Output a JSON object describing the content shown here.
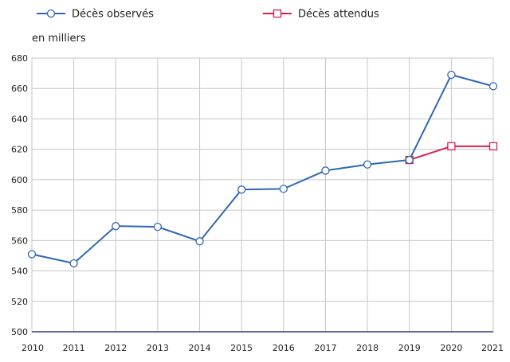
{
  "chart_data": {
    "type": "line",
    "title": "",
    "xlabel": "",
    "ylabel": "en milliers",
    "x": [
      2010,
      2011,
      2012,
      2013,
      2014,
      2015,
      2016,
      2017,
      2018,
      2019,
      2020,
      2021
    ],
    "xticks": [
      "2010",
      "2011",
      "2012",
      "2013",
      "2014",
      "2015",
      "2016",
      "2017",
      "2018",
      "2019",
      "2020",
      "2021"
    ],
    "ylim": [
      500,
      680
    ],
    "yticks": [
      "500",
      "520",
      "540",
      "560",
      "580",
      "600",
      "620",
      "640",
      "660",
      "680"
    ],
    "grid": true,
    "legend_position": "top",
    "series": [
      {
        "name": "Décès observés",
        "color": "#2f68b0",
        "marker": "circle",
        "x": [
          2010,
          2011,
          2012,
          2013,
          2014,
          2015,
          2016,
          2017,
          2018,
          2019,
          2020,
          2021
        ],
        "values": [
          551,
          545,
          569.5,
          569,
          559.5,
          593.5,
          594,
          606,
          610,
          613,
          669,
          661.5
        ]
      },
      {
        "name": "Décès attendus",
        "color": "#d8204d",
        "marker": "square",
        "x": [
          2019,
          2020,
          2021
        ],
        "values": [
          613,
          622,
          622
        ]
      }
    ]
  }
}
